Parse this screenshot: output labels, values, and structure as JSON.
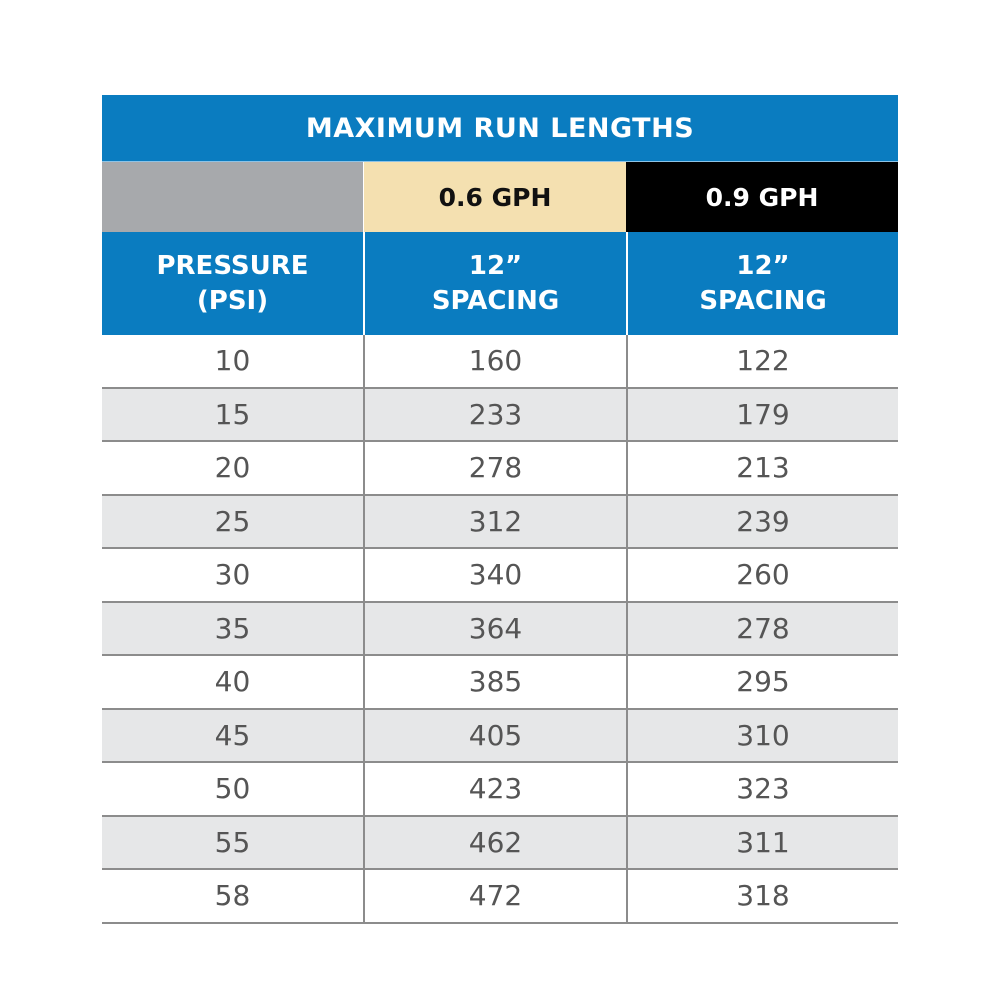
{
  "title": "MAXIMUM RUN LENGTHS",
  "flow_rates": {
    "blank": "",
    "col1": "0.6 GPH",
    "col2": "0.9 GPH"
  },
  "headers": {
    "pressure_line1": "PRESSURE",
    "pressure_line2": "(PSI)",
    "col1_line1": "12”",
    "col1_line2": "SPACING",
    "col2_line1": "12”",
    "col2_line2": "SPACING"
  },
  "rows": [
    [
      "10",
      "160",
      "122"
    ],
    [
      "15",
      "233",
      "179"
    ],
    [
      "20",
      "278",
      "213"
    ],
    [
      "25",
      "312",
      "239"
    ],
    [
      "30",
      "340",
      "260"
    ],
    [
      "35",
      "364",
      "278"
    ],
    [
      "40",
      "385",
      "295"
    ],
    [
      "45",
      "405",
      "310"
    ],
    [
      "50",
      "423",
      "323"
    ],
    [
      "55",
      "462",
      "311"
    ],
    [
      "58",
      "472",
      "318"
    ]
  ],
  "colors": {
    "header_blue": "#0a7cc0",
    "gph_06_bg": "#f4e0b0",
    "gph_09_bg": "#000000",
    "blank_gray": "#a7a9ac",
    "stripe": "#e6e7e8"
  }
}
